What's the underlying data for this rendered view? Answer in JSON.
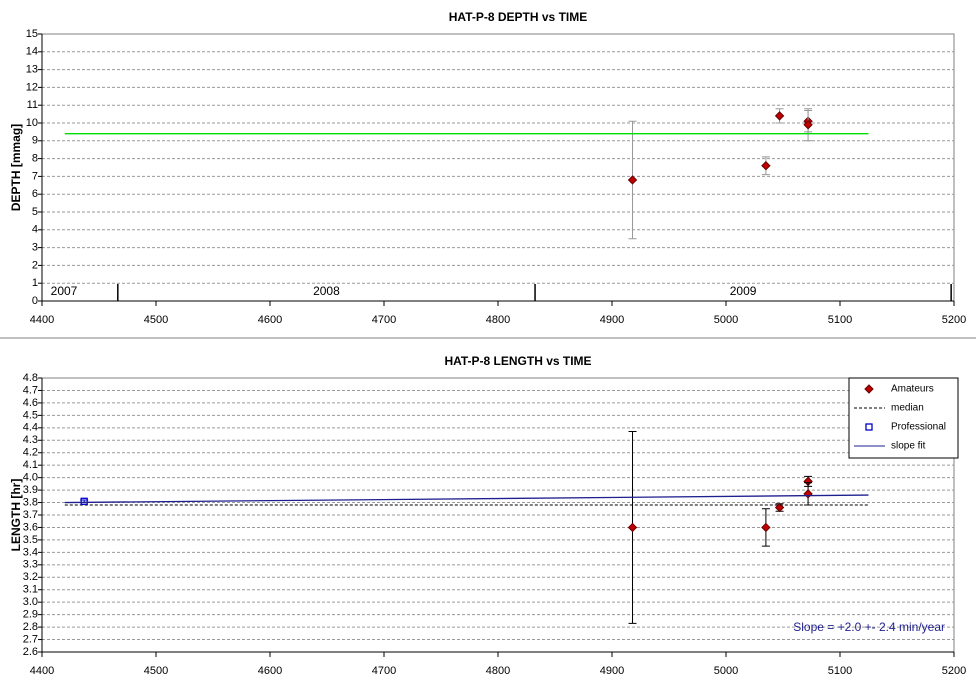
{
  "chart_data": [
    {
      "type": "scatter",
      "title": "HAT-P-8 DEPTH vs TIME",
      "y_label": "DEPTH [mmag]",
      "xlim": [
        4400,
        5200
      ],
      "xticks": [
        4400,
        4500,
        4600,
        4700,
        4800,
        4900,
        5000,
        5100,
        5200
      ],
      "ylim": [
        0,
        15
      ],
      "yticks": [
        0,
        1,
        2,
        3,
        4,
        5,
        6,
        7,
        8,
        9,
        10,
        11,
        12,
        13,
        14,
        15
      ],
      "grid": true,
      "year_boundaries": [
        4466.5,
        4832.5,
        5197.5
      ],
      "year_labels": [
        "2007",
        "2008",
        "2009"
      ],
      "series": [
        {
          "kind": "points",
          "marker": "diamond",
          "color": "#c00000",
          "error_color": "#999999",
          "x": [
            4918,
            5035,
            5047,
            5072,
            5072
          ],
          "values": [
            6.8,
            7.6,
            10.4,
            10.1,
            9.9
          ],
          "errors": [
            3.3,
            0.5,
            0.4,
            0.6,
            0.9
          ]
        },
        {
          "kind": "line",
          "color": "#00dd00",
          "dash": false,
          "x": [
            4420,
            5125
          ],
          "values": [
            9.4,
            9.4
          ]
        }
      ]
    },
    {
      "type": "scatter",
      "title": "HAT-P-8 LENGTH vs TIME",
      "y_label": "LENGTH [hr]",
      "xlim": [
        4400,
        5200
      ],
      "xticks": [
        4400,
        4500,
        4600,
        4700,
        4800,
        4900,
        5000,
        5100,
        5200
      ],
      "ylim": [
        2.6,
        4.8
      ],
      "yticks": [
        2.6,
        2.7,
        2.8,
        2.9,
        {
          "value": 3.0,
          "label": "3.0"
        },
        3.1,
        3.2,
        3.3,
        3.4,
        3.5,
        3.6,
        3.7,
        3.8,
        3.9,
        {
          "value": 4.0,
          "label": "4.0"
        },
        4.1,
        4.2,
        4.3,
        4.4,
        4.5,
        4.6,
        4.7,
        4.8
      ],
      "grid": true,
      "legend": "top-right",
      "annotation": "Slope = +2.0 +- 2.4 min/year",
      "annotation_color": "#1f1f8f",
      "series": [
        {
          "name": "Amateurs",
          "kind": "points",
          "marker": "diamond",
          "color": "#c00000",
          "error_color": "#000000",
          "x": [
            4918,
            5035,
            5047,
            5072,
            5072
          ],
          "values": [
            3.6,
            3.6,
            3.76,
            3.97,
            3.87
          ],
          "errors": [
            0.77,
            0.15,
            0.03,
            0.04,
            0.09
          ]
        },
        {
          "name": "median",
          "kind": "line",
          "color": "#000000",
          "dash": true,
          "x": [
            4420,
            5125
          ],
          "values": [
            3.78,
            3.78
          ]
        },
        {
          "name": "Professional",
          "kind": "points",
          "marker": "square",
          "color": "#0000cc",
          "error_color": "#0000cc",
          "x": [
            4437
          ],
          "values": [
            3.81
          ],
          "errors": [
            0.01
          ]
        },
        {
          "name": "slope fit",
          "kind": "line",
          "color": "#1f1f8f",
          "dash": false,
          "x": [
            4420,
            5125
          ],
          "values": [
            3.8,
            3.86
          ]
        }
      ]
    }
  ]
}
